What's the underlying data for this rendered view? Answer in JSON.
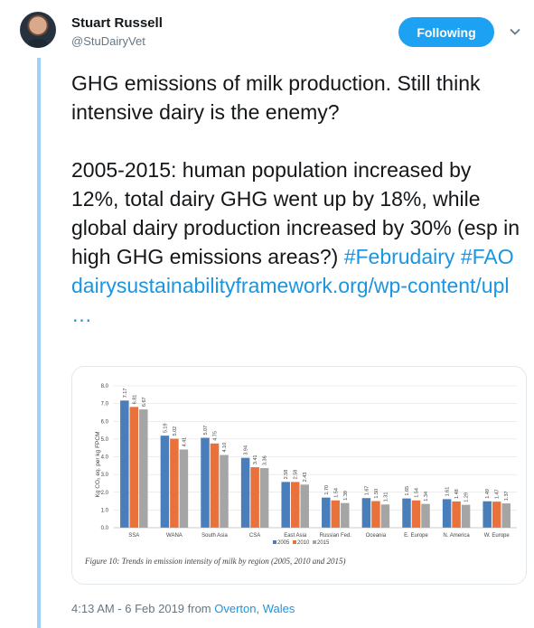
{
  "author": {
    "name": "Stuart Russell",
    "handle": "@StuDairyVet",
    "avatar_icon": "profile-photo"
  },
  "follow_button": {
    "label": "Following"
  },
  "menu": {
    "icon": "chevron-down-icon"
  },
  "tweet": {
    "line1": "GHG emissions of milk production. Still think intensive dairy is the enemy?",
    "line2_text": "2005-2015: human population increased by 12%, total dairy GHG went up by 18%, while global dairy production increased by 30% (esp in high GHG emissions areas?) ",
    "hashtag1": "#Februdairy",
    "hashtag2": "#FAO",
    "link": "dairysustainabilityframework.org/wp-content/upl   …"
  },
  "footer": {
    "timestamp": "4:13 AM - 6 Feb 2019 from ",
    "location": "Overton, Wales"
  },
  "colors": {
    "accent": "#1da1f2",
    "series_2005": "#4a7ebb",
    "series_2010": "#e8713c",
    "series_2015": "#a5a5a5"
  },
  "chart_data": {
    "type": "bar",
    "categories": [
      "SSA",
      "WANA",
      "South Asia",
      "CSA",
      "East Asia",
      "Russian Fed.",
      "Oceania",
      "E. Europe",
      "N. America",
      "W. Europe"
    ],
    "series": [
      {
        "name": "2005",
        "values": [
          7.17,
          5.19,
          5.07,
          3.94,
          2.58,
          1.7,
          1.67,
          1.65,
          1.61,
          1.49
        ]
      },
      {
        "name": "2010",
        "values": [
          6.81,
          5.02,
          4.75,
          3.41,
          2.58,
          1.54,
          1.5,
          1.54,
          1.48,
          1.47
        ]
      },
      {
        "name": "2015",
        "values": [
          6.67,
          4.41,
          4.1,
          3.36,
          2.43,
          1.39,
          1.31,
          1.34,
          1.29,
          1.37
        ]
      }
    ],
    "ylabel": "Kg CO₂ eq. per kg FPCM",
    "yticks": [
      "0.0",
      "1.0",
      "2.0",
      "3.0",
      "4.0",
      "5.0",
      "6.0",
      "7.0",
      "8.0"
    ],
    "ylim": [
      0,
      8
    ],
    "grid": true,
    "legend_position": "bottom",
    "caption": "Figure 10: Trends in emission intensity of milk by region (2005, 2010 and 2015)"
  }
}
